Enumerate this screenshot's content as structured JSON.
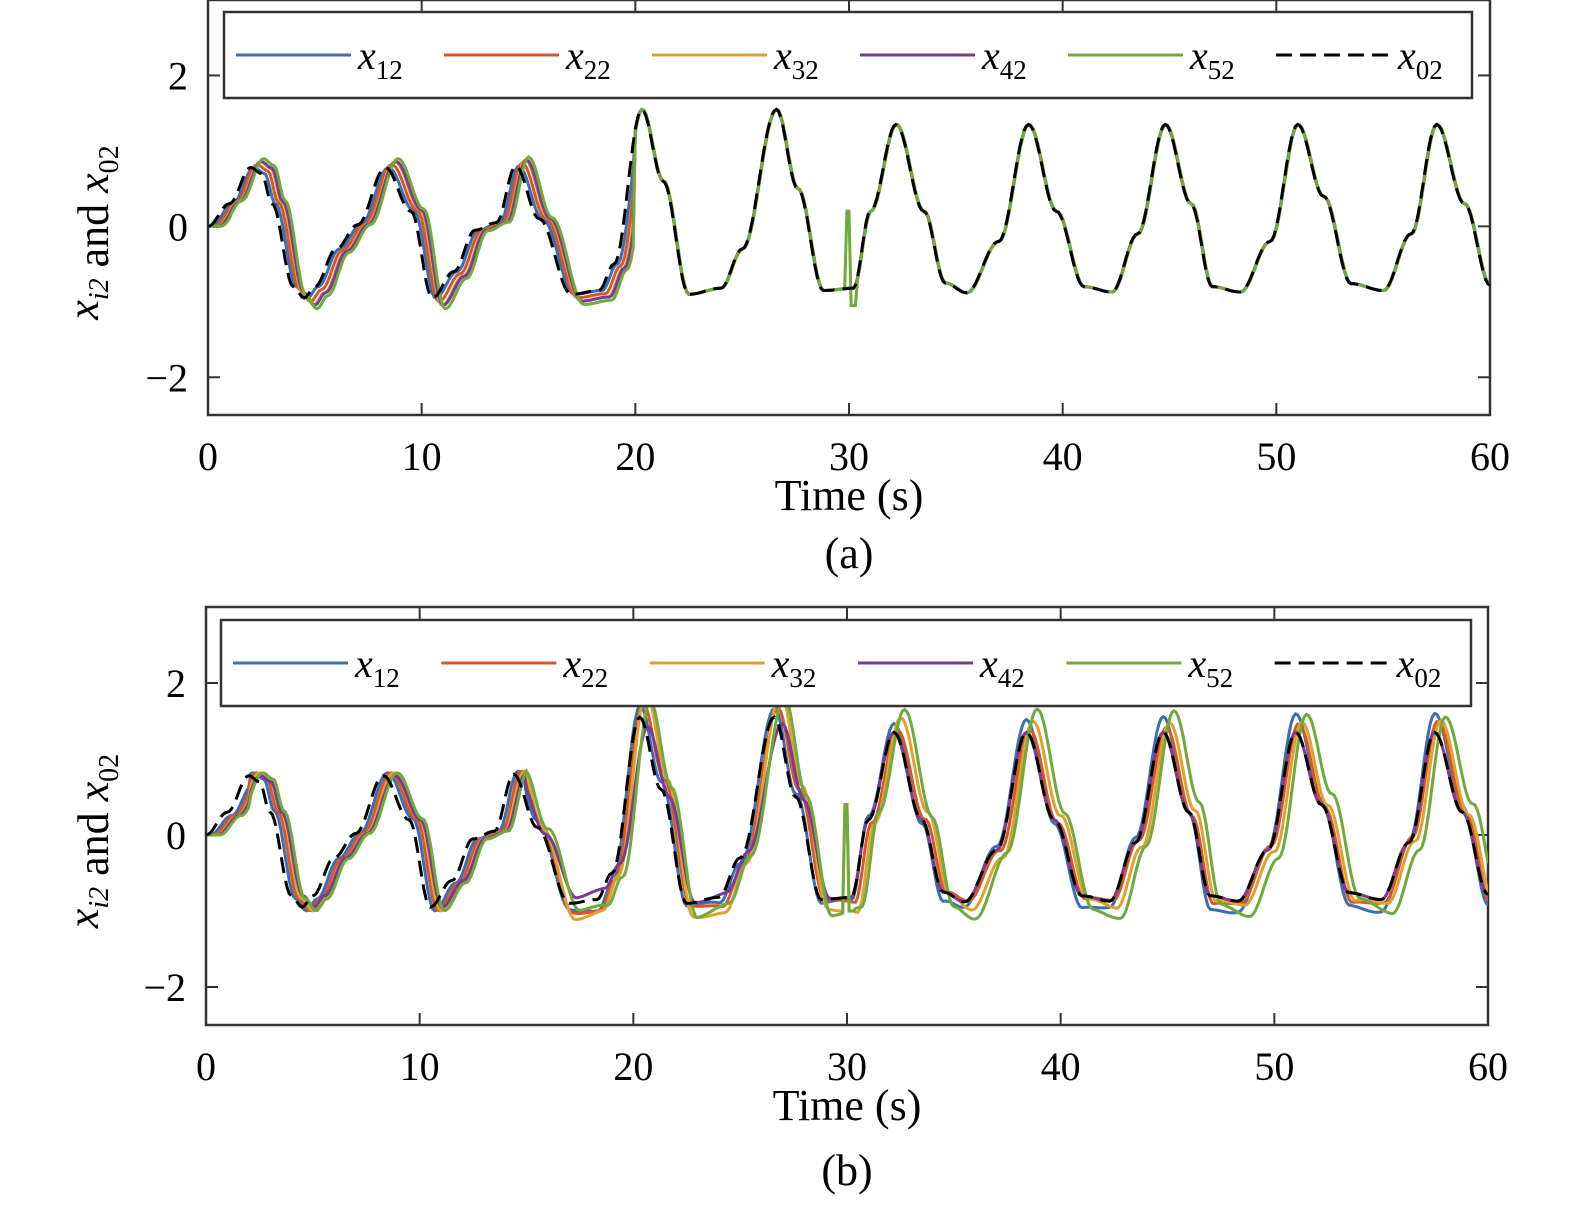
{
  "chart_data": [
    {
      "type": "line",
      "caption": "(a)",
      "xlabel": "Time (s)",
      "ylabel": {
        "base": "x",
        "sub": "i2",
        "middle": " and ",
        "base2": "x",
        "sub2": "02"
      },
      "xlim": [
        0,
        60
      ],
      "ylim": [
        -2.5,
        3.0
      ],
      "xticks": [
        "0",
        "10",
        "20",
        "30",
        "40",
        "50",
        "60"
      ],
      "yticks": [
        "−2",
        "0",
        "2"
      ],
      "legend_position": "top",
      "series": [
        {
          "name": "x12",
          "color": "#3a6fb5",
          "style": "solid"
        },
        {
          "name": "x22",
          "color": "#d4582a",
          "style": "solid"
        },
        {
          "name": "x32",
          "color": "#e2a02f",
          "style": "solid"
        },
        {
          "name": "x42",
          "color": "#7b3a94",
          "style": "solid"
        },
        {
          "name": "x52",
          "color": "#6fab3c",
          "style": "solid"
        },
        {
          "name": "x02",
          "color": "#000000",
          "style": "dash-dot"
        }
      ],
      "reference_x02": {
        "x": [
          0,
          1,
          2,
          2.5,
          3,
          4,
          4.5,
          5,
          6,
          7,
          8.3,
          9.5,
          10.5,
          11.5,
          12.5,
          13.5,
          14.4,
          15.5,
          17,
          18.3,
          19,
          20.3,
          21.3,
          22.5,
          24,
          25,
          26.6,
          27.6,
          28.8,
          30.2,
          31,
          32.2,
          33.5,
          34.5,
          35.5,
          37,
          38.4,
          39.7,
          41,
          42.3,
          43.5,
          44.8,
          46,
          47,
          48.3,
          49.7,
          51,
          52.2,
          53.5,
          55,
          56.3,
          57.5,
          58.8,
          60
        ],
        "y": [
          0,
          0.3,
          0.78,
          0.7,
          0.3,
          -0.8,
          -0.95,
          -0.8,
          -0.3,
          0.02,
          0.78,
          0.2,
          -0.95,
          -0.6,
          -0.05,
          0.05,
          0.8,
          0.1,
          -0.9,
          -0.85,
          -0.5,
          1.55,
          0.6,
          -0.9,
          -0.82,
          -0.3,
          1.55,
          0.5,
          -0.85,
          -0.82,
          0.2,
          1.35,
          0.2,
          -0.75,
          -0.88,
          -0.2,
          1.35,
          0.2,
          -0.8,
          -0.87,
          -0.1,
          1.35,
          0.3,
          -0.8,
          -0.87,
          -0.2,
          1.35,
          0.4,
          -0.76,
          -0.85,
          -0.1,
          1.35,
          0.3,
          -0.78
        ]
      },
      "agents": {
        "lag": [
          0.15,
          0.3,
          0.45,
          0.5,
          0.6
        ],
        "amp": [
          1.0,
          1.05,
          1.1,
          1.1,
          1.15
        ],
        "settle_time": 20,
        "glitch_time": 30.1
      }
    },
    {
      "type": "line",
      "caption": "(b)",
      "xlabel": "Time (s)",
      "ylabel": {
        "base": "x",
        "sub": "i2",
        "middle": " and ",
        "base2": "x",
        "sub2": "02"
      },
      "xlim": [
        0,
        60
      ],
      "ylim": [
        -2.5,
        3.0
      ],
      "xticks": [
        "0",
        "10",
        "20",
        "30",
        "40",
        "50",
        "60"
      ],
      "yticks": [
        "−2",
        "0",
        "2"
      ],
      "legend_position": "top",
      "series": [
        {
          "name": "x12",
          "color": "#3a6fb5",
          "style": "solid"
        },
        {
          "name": "x22",
          "color": "#d4582a",
          "style": "solid"
        },
        {
          "name": "x32",
          "color": "#e2a02f",
          "style": "solid"
        },
        {
          "name": "x42",
          "color": "#7b3a94",
          "style": "solid"
        },
        {
          "name": "x52",
          "color": "#6fab3c",
          "style": "solid"
        },
        {
          "name": "x02",
          "color": "#000000",
          "style": "dash-dot"
        }
      ],
      "reference_x02": {
        "x": [
          0,
          1,
          2,
          2.5,
          3,
          4,
          4.5,
          5,
          6,
          7,
          8.3,
          9.5,
          10.5,
          11.5,
          12.5,
          13.5,
          14.4,
          15.5,
          17,
          18.3,
          19,
          20.3,
          21.3,
          22.5,
          24,
          25,
          26.6,
          27.6,
          28.8,
          30.2,
          31,
          32.2,
          33.5,
          34.5,
          35.5,
          37,
          38.4,
          39.7,
          41,
          42.3,
          43.5,
          44.8,
          46,
          47,
          48.3,
          49.7,
          51,
          52.2,
          53.5,
          55,
          56.3,
          57.5,
          58.8,
          60
        ],
        "y": [
          0,
          0.3,
          0.78,
          0.7,
          0.3,
          -0.8,
          -0.95,
          -0.8,
          -0.3,
          0.02,
          0.78,
          0.2,
          -0.95,
          -0.6,
          -0.05,
          0.05,
          0.8,
          0.1,
          -0.9,
          -0.85,
          -0.5,
          1.55,
          0.6,
          -0.9,
          -0.82,
          -0.3,
          1.55,
          0.5,
          -0.85,
          -0.82,
          0.2,
          1.35,
          0.2,
          -0.75,
          -0.88,
          -0.2,
          1.35,
          0.2,
          -0.8,
          -0.87,
          -0.1,
          1.35,
          0.3,
          -0.8,
          -0.87,
          -0.2,
          1.35,
          0.4,
          -0.76,
          -0.85,
          -0.1,
          1.35,
          0.3,
          -0.78
        ]
      },
      "agents": {
        "lag": [
          0.2,
          0.35,
          0.5,
          0.55,
          0.65
        ],
        "amp": [
          1.25,
          1.2,
          1.28,
          1.0,
          1.3
        ],
        "follower_series": [
          3
        ],
        "glitch_time": 30.1
      }
    }
  ]
}
